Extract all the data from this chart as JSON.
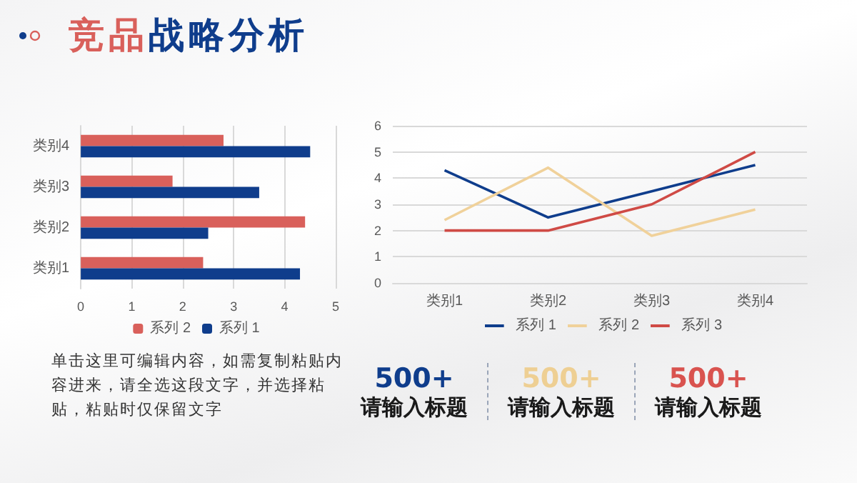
{
  "chart_data": [
    {
      "type": "bar",
      "title": "竞品战略分析",
      "orientation": "horizontal",
      "categories": [
        "类别4",
        "类别3",
        "类别2",
        "类别1"
      ],
      "series": [
        {
          "name": "系列 2",
          "color": "#d9605b",
          "values": [
            2.8,
            1.8,
            4.4,
            2.4
          ]
        },
        {
          "name": "系列 1",
          "color": "#0f3d8c",
          "values": [
            4.5,
            3.5,
            2.5,
            4.3
          ]
        }
      ],
      "xlim": [
        0,
        5
      ],
      "xticks": [
        0,
        1,
        2,
        3,
        4,
        5
      ],
      "grid": "x",
      "legend": "bottom"
    },
    {
      "type": "line",
      "categories": [
        "类别1",
        "类别2",
        "类别3",
        "类别4"
      ],
      "series": [
        {
          "name": "系列 1",
          "color": "#0f3d8c",
          "values": [
            4.3,
            2.5,
            3.5,
            4.5
          ]
        },
        {
          "name": "系列 2",
          "color": "#f0d19a",
          "values": [
            2.4,
            4.4,
            1.8,
            2.8
          ]
        },
        {
          "name": "系列 3",
          "color": "#cf4a45",
          "values": [
            2,
            2,
            3,
            5
          ]
        }
      ],
      "ylim": [
        0,
        6
      ],
      "yticks": [
        0,
        1,
        2,
        3,
        4,
        5,
        6
      ],
      "grid": "y",
      "legend": "bottom",
      "marker": "none"
    },
    {
      "type": "other",
      "annotations": [
        "单击这里可编辑内容，如需复制粘贴内容进来，请全选这段文字，并选择粘贴，粘贴时仅保留文字",
        "500+",
        "请输入标题",
        "500+",
        "请输入标题",
        "500+",
        "请输入标题"
      ]
    }
  ]
}
